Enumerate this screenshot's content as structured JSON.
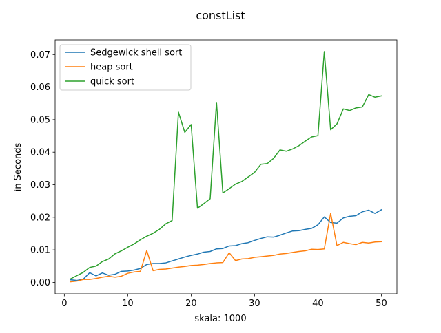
{
  "chart_data": {
    "type": "line",
    "title": "constList",
    "xlabel": "skala: 1000",
    "ylabel": "in Seconds",
    "xlim": [
      -1.45,
      52.45
    ],
    "ylim": [
      -0.0035,
      0.0745
    ],
    "xticks": [
      0,
      10,
      20,
      30,
      40,
      50
    ],
    "xtick_labels": [
      "0",
      "10",
      "20",
      "30",
      "40",
      "50"
    ],
    "yticks": [
      0.0,
      0.01,
      0.02,
      0.03,
      0.04,
      0.05,
      0.06,
      0.07
    ],
    "ytick_labels": [
      "0.00",
      "0.01",
      "0.02",
      "0.03",
      "0.04",
      "0.05",
      "0.06",
      "0.07"
    ],
    "grid": false,
    "legend_position": "top-left",
    "x": [
      1,
      2,
      3,
      4,
      5,
      6,
      7,
      8,
      9,
      10,
      11,
      12,
      13,
      14,
      15,
      16,
      17,
      18,
      19,
      20,
      21,
      22,
      23,
      24,
      25,
      26,
      27,
      28,
      29,
      30,
      31,
      32,
      33,
      34,
      35,
      36,
      37,
      38,
      39,
      40,
      41,
      42,
      43,
      44,
      45,
      46,
      47,
      48,
      49,
      50
    ],
    "series": [
      {
        "name": "Sedgewick shell sort",
        "color": "#1f77b4",
        "values": [
          0.0008,
          0.0006,
          0.001,
          0.003,
          0.002,
          0.0029,
          0.0022,
          0.0025,
          0.0034,
          0.0035,
          0.0038,
          0.0043,
          0.0055,
          0.0058,
          0.0058,
          0.006,
          0.0066,
          0.0072,
          0.0078,
          0.0083,
          0.0087,
          0.0093,
          0.0095,
          0.0103,
          0.0104,
          0.0112,
          0.0113,
          0.0119,
          0.0122,
          0.0129,
          0.0135,
          0.014,
          0.0139,
          0.0145,
          0.0152,
          0.0158,
          0.0159,
          0.0163,
          0.0166,
          0.0177,
          0.0201,
          0.0184,
          0.0182,
          0.0198,
          0.0203,
          0.0205,
          0.0217,
          0.0222,
          0.0212,
          0.0223
        ]
      },
      {
        "name": "heap sort",
        "color": "#ff7f0e",
        "values": [
          0.0002,
          0.0004,
          0.0009,
          0.0009,
          0.0012,
          0.0016,
          0.0019,
          0.0016,
          0.0019,
          0.0028,
          0.0032,
          0.0034,
          0.0098,
          0.0036,
          0.004,
          0.0041,
          0.0044,
          0.0047,
          0.0049,
          0.0052,
          0.0053,
          0.0055,
          0.0058,
          0.006,
          0.0061,
          0.0091,
          0.0067,
          0.0072,
          0.0073,
          0.0077,
          0.0079,
          0.0081,
          0.0083,
          0.0087,
          0.0089,
          0.0092,
          0.0095,
          0.0097,
          0.0102,
          0.0101,
          0.0103,
          0.0212,
          0.0113,
          0.0123,
          0.0119,
          0.0116,
          0.0123,
          0.0121,
          0.0124,
          0.0125
        ]
      },
      {
        "name": "quick sort",
        "color": "#2ca02c",
        "values": [
          0.0011,
          0.0021,
          0.0031,
          0.0046,
          0.005,
          0.0064,
          0.0072,
          0.0088,
          0.0097,
          0.0108,
          0.0118,
          0.0131,
          0.0142,
          0.0151,
          0.0163,
          0.018,
          0.019,
          0.0523,
          0.0461,
          0.0485,
          0.0228,
          0.0242,
          0.0257,
          0.0553,
          0.0275,
          0.0288,
          0.0302,
          0.031,
          0.0324,
          0.0338,
          0.0363,
          0.0365,
          0.0381,
          0.0407,
          0.0403,
          0.041,
          0.042,
          0.0434,
          0.0447,
          0.0451,
          0.0709,
          0.0469,
          0.0487,
          0.0533,
          0.0528,
          0.0536,
          0.0539,
          0.0577,
          0.0569,
          0.0573
        ]
      }
    ]
  }
}
